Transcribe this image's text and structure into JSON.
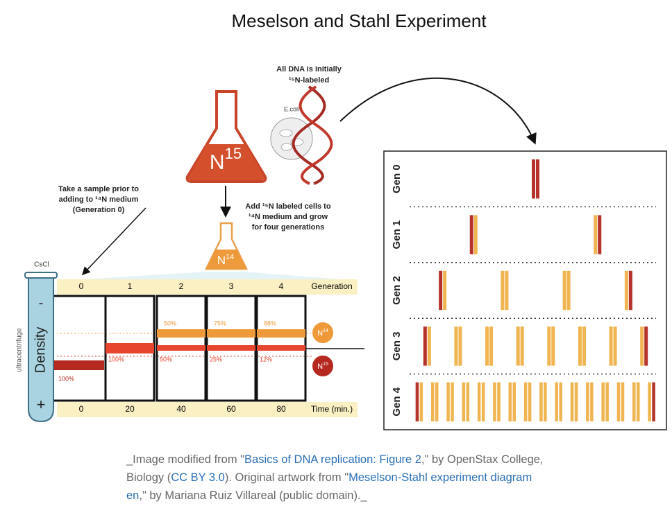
{
  "title": "Meselson and Stahl Experiment",
  "top_note": [
    "All DNA is initially",
    "¹⁵N-labeled"
  ],
  "ecoli": "E.coli",
  "flask_15": {
    "element": "N",
    "isotope": "15"
  },
  "flask_14": {
    "element": "N",
    "isotope": "14"
  },
  "sample_note": [
    "Take a sample prior to",
    "adding to ¹⁴N medium",
    "(Generation 0)"
  ],
  "grow_note": [
    "Add ¹⁵N labeled cells to",
    "¹⁴N medium and grow",
    "for four generations"
  ],
  "tube": {
    "label": "CsCl",
    "side": "ultracentrifuge",
    "axis": "Density",
    "minus": "-",
    "plus": "+"
  },
  "table": {
    "generation_label": "Generation",
    "generations": [
      "0",
      "1",
      "2",
      "3",
      "4"
    ],
    "time_label": "Time (min.)",
    "times": [
      "0",
      "20",
      "40",
      "60",
      "80"
    ],
    "light_pct": [
      "50%",
      "75%",
      "88%"
    ],
    "heavy_pct": [
      "100%",
      "100%",
      "50%",
      "25%",
      "12%"
    ]
  },
  "badges": {
    "light": {
      "element": "N",
      "isotope": "14"
    },
    "heavy": {
      "element": "N",
      "isotope": "15"
    }
  },
  "rows": [
    "Gen 0",
    "Gen 1",
    "Gen 2",
    "Gen 3",
    "Gen 4"
  ],
  "caption": [
    "_Image modified from \"",
    "Basics of DNA replication: Figure 2",
    ",\" by OpenStax College, Biology (",
    "CC BY 3.0",
    "). Original artwork from \"",
    "Meselson-Stahl experiment diagram en",
    ",\" by Mariana Ruiz Villareal (public domain)._"
  ]
}
